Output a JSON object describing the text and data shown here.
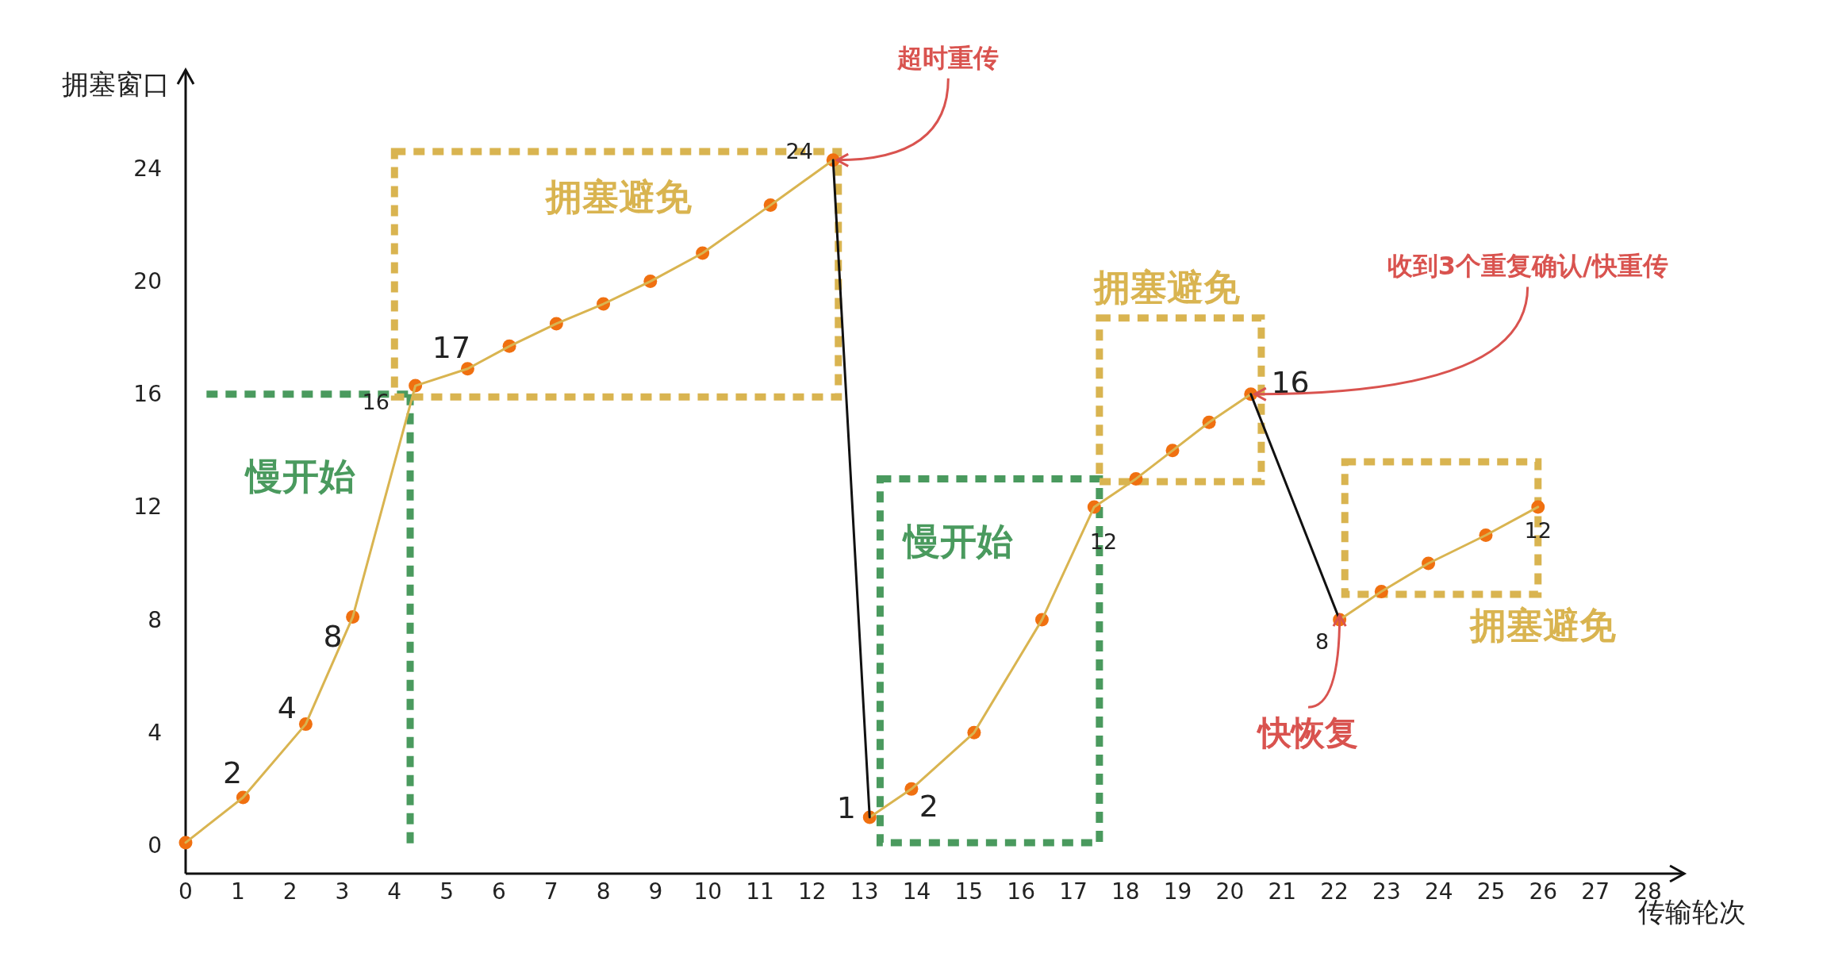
{
  "chart_data": {
    "type": "line",
    "xlabel": "传输轮次",
    "ylabel": "拥塞窗口",
    "xlim": [
      0,
      28.7
    ],
    "ylim": [
      -1,
      27.5
    ],
    "xticks": [
      0,
      1,
      2,
      3,
      4,
      5,
      6,
      7,
      8,
      9,
      10,
      11,
      12,
      13,
      14,
      15,
      16,
      17,
      18,
      19,
      20,
      21,
      22,
      23,
      24,
      25,
      26,
      27,
      28
    ],
    "yticks": [
      0,
      4,
      8,
      12,
      16,
      20,
      24
    ],
    "series": [
      {
        "type": "scatter",
        "marker": "circle",
        "color": "#f07010",
        "x": [
          0,
          1.1,
          2.3,
          3.2,
          4.4,
          5.4,
          6.2,
          7.1,
          8.0,
          8.9,
          9.9,
          11.2,
          12.4,
          13.1,
          13.9,
          15.1,
          16.4,
          17.4,
          18.2,
          18.9,
          19.6,
          20.4,
          22.1,
          22.9,
          23.8,
          24.9,
          25.9
        ],
        "values": [
          0.1,
          1.7,
          4.3,
          8.1,
          16.3,
          16.9,
          17.7,
          18.5,
          19.2,
          20.0,
          21.0,
          22.7,
          24.3,
          1,
          2,
          4,
          8,
          12,
          13,
          14,
          15,
          16,
          8,
          9,
          10,
          11,
          12
        ],
        "value_labels": [
          null,
          "2",
          "4",
          "8",
          "16",
          "17",
          null,
          null,
          null,
          null,
          null,
          null,
          "24",
          "1",
          "2",
          null,
          null,
          "12",
          null,
          null,
          null,
          "16",
          "8",
          null,
          null,
          null,
          "12"
        ]
      },
      {
        "type": "line",
        "color": "#d9b450",
        "x": [
          0,
          1.1,
          2.3,
          3.2,
          4.4,
          5.4,
          6.2,
          7.1,
          8.0,
          8.9,
          9.9,
          11.2,
          12.4,
          12.8,
          13.1,
          13.9,
          15.1,
          16.4,
          17.4,
          18.2,
          18.9,
          19.6,
          20.4,
          21.0,
          22.1,
          22.9,
          23.8,
          24.9,
          25.9
        ],
        "values": [
          0.1,
          1.7,
          4.3,
          8.1,
          16.3,
          16.9,
          17.7,
          18.5,
          19.2,
          20.0,
          21.0,
          22.7,
          24.3,
          null,
          1,
          2,
          4,
          8,
          12,
          13,
          14,
          15,
          16,
          null,
          8,
          9,
          10,
          11,
          12
        ]
      },
      {
        "color": "#111111",
        "x": [
          12.4,
          13.1
        ],
        "values": [
          24.3,
          1
        ]
      },
      {
        "color": "#111111",
        "x": [
          20.4,
          22.1
        ],
        "values": [
          16,
          8
        ]
      }
    ],
    "annotations": [
      {
        "text": "超时重传",
        "x": 12.4,
        "y": 24.3
      },
      {
        "text": "收到3个重复确认/快重传",
        "x": 20.4,
        "y": 16
      },
      {
        "text": "快恢复",
        "x": 22.1,
        "y": 8
      },
      "慢开始",
      "慢开始",
      "拥塞避免",
      "拥塞避免",
      "拥塞避免"
    ]
  }
}
